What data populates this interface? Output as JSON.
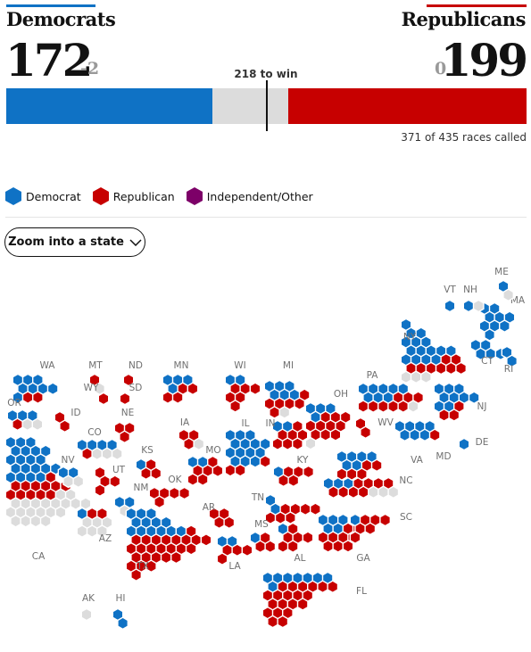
{
  "header": {
    "dem": {
      "name": "Democrats",
      "seats": "172",
      "change": "-2"
    },
    "rep": {
      "name": "Republicans",
      "seats": "199",
      "change": "0"
    },
    "to_win": "218 to win",
    "called": "371 of 435 races called"
  },
  "legend": [
    {
      "label": "Democrat",
      "color": "#0f72c5"
    },
    {
      "label": "Republican",
      "color": "#c70000"
    },
    {
      "label": "Independent/Other",
      "color": "#7d0068"
    }
  ],
  "zoom_button": {
    "label": "Zoom into a state",
    "icon": "chevron-down-icon"
  },
  "colors": {
    "dem": "#0f72c5",
    "rep": "#c70000",
    "ind": "#7d0068",
    "uncalled": "#dcdcdc"
  },
  "chart_data": {
    "type": "bar",
    "title": "",
    "total_seats": 435,
    "majority": 218,
    "series": [
      {
        "name": "Democrats",
        "values": [
          172
        ]
      },
      {
        "name": "Republicans",
        "values": [
          199
        ]
      }
    ],
    "uncalled": 64,
    "called": 371,
    "states": [
      {
        "label": "WA",
        "dem": 8,
        "rep": 2,
        "uncalled": 0
      },
      {
        "label": "OR",
        "dem": 3,
        "rep": 1,
        "uncalled": 2
      },
      {
        "label": "CA",
        "dem": 20,
        "rep": 12,
        "uncalled": 20
      },
      {
        "label": "ID",
        "dem": 0,
        "rep": 2,
        "uncalled": 0
      },
      {
        "label": "NV",
        "dem": 2,
        "rep": 0,
        "uncalled": 2
      },
      {
        "label": "MT",
        "dem": 0,
        "rep": 1,
        "uncalled": 1
      },
      {
        "label": "WY",
        "dem": 0,
        "rep": 1,
        "uncalled": 0
      },
      {
        "label": "UT",
        "dem": 0,
        "rep": 4,
        "uncalled": 0
      },
      {
        "label": "AZ",
        "dem": 1,
        "rep": 2,
        "uncalled": 6
      },
      {
        "label": "CO",
        "dem": 4,
        "rep": 1,
        "uncalled": 3
      },
      {
        "label": "NM",
        "dem": 2,
        "rep": 0,
        "uncalled": 1
      },
      {
        "label": "ND",
        "dem": 0,
        "rep": 1,
        "uncalled": 0
      },
      {
        "label": "SD",
        "dem": 0,
        "rep": 1,
        "uncalled": 0
      },
      {
        "label": "NE",
        "dem": 0,
        "rep": 3,
        "uncalled": 0
      },
      {
        "label": "KS",
        "dem": 1,
        "rep": 3,
        "uncalled": 0
      },
      {
        "label": "OK",
        "dem": 0,
        "rep": 5,
        "uncalled": 0
      },
      {
        "label": "TX",
        "dem": 13,
        "rep": 25,
        "uncalled": 0
      },
      {
        "label": "MN",
        "dem": 4,
        "rep": 4,
        "uncalled": 0
      },
      {
        "label": "IA",
        "dem": 0,
        "rep": 3,
        "uncalled": 1
      },
      {
        "label": "MO",
        "dem": 2,
        "rep": 6,
        "uncalled": 0
      },
      {
        "label": "AR",
        "dem": 0,
        "rep": 4,
        "uncalled": 0
      },
      {
        "label": "LA",
        "dem": 2,
        "rep": 4,
        "uncalled": 0
      },
      {
        "label": "WI",
        "dem": 2,
        "rep": 6,
        "uncalled": 0
      },
      {
        "label": "IL",
        "dem": 14,
        "rep": 3,
        "uncalled": 0
      },
      {
        "label": "MI",
        "dem": 6,
        "rep": 6,
        "uncalled": 1
      },
      {
        "label": "IN",
        "dem": 2,
        "rep": 7,
        "uncalled": 0
      },
      {
        "label": "KY",
        "dem": 1,
        "rep": 5,
        "uncalled": 0
      },
      {
        "label": "TN",
        "dem": 2,
        "rep": 7,
        "uncalled": 0
      },
      {
        "label": "MS",
        "dem": 1,
        "rep": 3,
        "uncalled": 0
      },
      {
        "label": "AL",
        "dem": 1,
        "rep": 6,
        "uncalled": 0
      },
      {
        "label": "OH",
        "dem": 4,
        "rep": 10,
        "uncalled": 1
      },
      {
        "label": "GA",
        "dem": 5,
        "rep": 9,
        "uncalled": 0
      },
      {
        "label": "FL",
        "dem": 8,
        "rep": 20,
        "uncalled": 0
      },
      {
        "label": "SC",
        "dem": 1,
        "rep": 6,
        "uncalled": 0
      },
      {
        "label": "NC",
        "dem": 3,
        "rep": 8,
        "uncalled": 3
      },
      {
        "label": "VA",
        "dem": 6,
        "rep": 5,
        "uncalled": 0
      },
      {
        "label": "WV",
        "dem": 0,
        "rep": 2,
        "uncalled": 0
      },
      {
        "label": "PA",
        "dem": 8,
        "rep": 8,
        "uncalled": 1
      },
      {
        "label": "MD",
        "dem": 7,
        "rep": 1,
        "uncalled": 0
      },
      {
        "label": "DE",
        "dem": 1,
        "rep": 0,
        "uncalled": 0
      },
      {
        "label": "NJ",
        "dem": 9,
        "rep": 3,
        "uncalled": 0
      },
      {
        "label": "NY",
        "dem": 15,
        "rep": 8,
        "uncalled": 3
      },
      {
        "label": "CT",
        "dem": 5,
        "rep": 0,
        "uncalled": 0
      },
      {
        "label": "RI",
        "dem": 2,
        "rep": 0,
        "uncalled": 0
      },
      {
        "label": "MA",
        "dem": 9,
        "rep": 0,
        "uncalled": 0
      },
      {
        "label": "VT",
        "dem": 1,
        "rep": 0,
        "uncalled": 0
      },
      {
        "label": "NH",
        "dem": 1,
        "rep": 0,
        "uncalled": 1
      },
      {
        "label": "ME",
        "dem": 1,
        "rep": 0,
        "uncalled": 1
      },
      {
        "label": "AK",
        "dem": 0,
        "rep": 0,
        "uncalled": 1
      },
      {
        "label": "HI",
        "dem": 2,
        "rep": 0,
        "uncalled": 0
      }
    ]
  }
}
